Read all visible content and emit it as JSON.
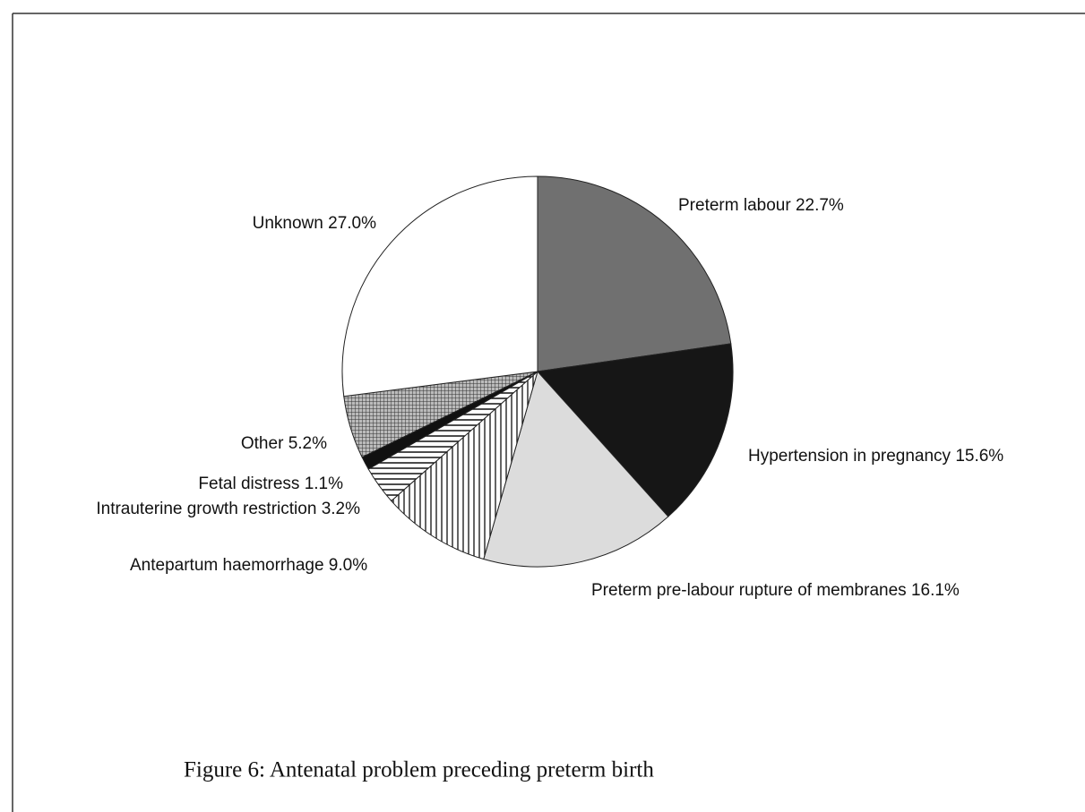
{
  "chart_data": {
    "type": "pie",
    "caption": "Figure 6: Antenatal problem preceding preterm birth",
    "categories": [
      "Preterm labour",
      "Hypertension in pregnancy",
      "Preterm pre-labour rupture of membranes",
      "Antepartum haemorrhage",
      "Intrauterine growth restriction",
      "Fetal distress",
      "Other",
      "Unknown"
    ],
    "values": [
      22.7,
      15.6,
      16.1,
      9.0,
      3.2,
      1.1,
      5.2,
      27.0
    ],
    "value_labels": [
      "22.7%",
      "15.6%",
      "16.1%",
      "9.0%",
      "3.2%",
      "1.1%",
      "5.2%",
      "27.0%"
    ],
    "colors": [
      "#707070",
      "#161616",
      "#dcdcdc",
      "#ffffff",
      "#ffffff",
      "#111111",
      "#8a8a8a",
      "#ffffff"
    ],
    "hatch": [
      null,
      null,
      null,
      "vertical",
      "horizontal",
      null,
      "cross",
      null
    ]
  }
}
